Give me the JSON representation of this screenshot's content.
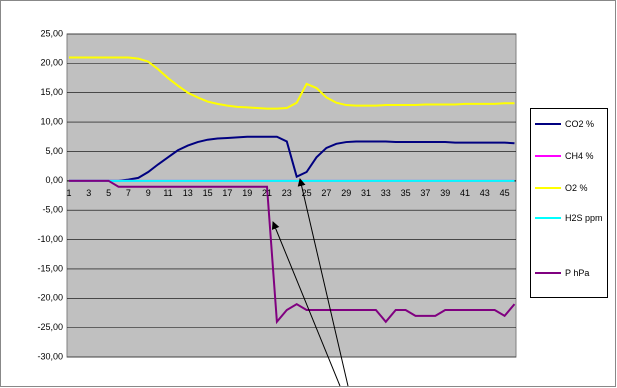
{
  "chart_data": {
    "type": "line",
    "categories": [
      "1",
      null,
      "3",
      null,
      "5",
      null,
      "7",
      null,
      "9",
      null,
      "11",
      null,
      "13",
      null,
      "15",
      null,
      "17",
      null,
      "19",
      null,
      "21",
      null,
      "23",
      null,
      "25",
      null,
      "27",
      null,
      "29",
      null,
      "31",
      null,
      "33",
      null,
      "35",
      null,
      "37",
      null,
      "39",
      null,
      "41",
      null,
      "43",
      null,
      "45",
      null
    ],
    "ylim": [
      -30,
      25
    ],
    "yticks": [
      {
        "value": 25,
        "label": "25,00"
      },
      {
        "value": 20,
        "label": "20,00"
      },
      {
        "value": 15,
        "label": "15,00"
      },
      {
        "value": 10,
        "label": "10,00"
      },
      {
        "value": 5,
        "label": "5,00"
      },
      {
        "value": 0,
        "label": "0,00"
      },
      {
        "value": -5,
        "label": "-5,00"
      },
      {
        "value": -10,
        "label": "-10,00"
      },
      {
        "value": -15,
        "label": "-15,00"
      },
      {
        "value": -20,
        "label": "-20,00"
      },
      {
        "value": -25,
        "label": "-25,00"
      },
      {
        "value": -30,
        "label": "-30,00"
      }
    ],
    "grid": true,
    "series": [
      {
        "name": "CO2 %",
        "color": "#000080",
        "values": [
          0,
          0,
          0,
          0,
          0,
          0,
          0.2,
          0.5,
          1.5,
          2.8,
          4,
          5.2,
          6,
          6.6,
          7,
          7.2,
          7.3,
          7.4,
          7.5,
          7.5,
          7.5,
          7.5,
          6.7,
          0.7,
          1.5,
          4,
          5.6,
          6.3,
          6.6,
          6.7,
          6.7,
          6.7,
          6.7,
          6.6,
          6.6,
          6.6,
          6.6,
          6.6,
          6.6,
          6.5,
          6.5,
          6.5,
          6.5,
          6.5,
          6.5,
          6.4
        ]
      },
      {
        "name": "CH4 %",
        "color": "#ff00ff",
        "values": [
          0,
          0,
          0,
          0,
          0,
          0,
          0,
          0,
          0,
          0,
          0,
          0,
          0,
          0,
          0,
          0,
          0,
          0,
          0,
          0,
          0,
          0,
          0,
          0,
          0,
          0,
          0,
          0,
          0,
          0,
          0,
          0,
          0,
          0,
          0,
          0,
          0,
          0,
          0,
          0,
          0,
          0,
          0,
          0,
          0,
          0
        ]
      },
      {
        "name": "O2 %",
        "color": "#ffff00",
        "values": [
          21,
          21,
          21,
          21,
          21,
          21,
          21,
          20.8,
          20.3,
          19,
          17.5,
          16.2,
          15,
          14.2,
          13.5,
          13.1,
          12.8,
          12.6,
          12.5,
          12.4,
          12.3,
          12.3,
          12.4,
          13.3,
          16.5,
          15.8,
          14.2,
          13.3,
          12.9,
          12.8,
          12.8,
          12.8,
          12.9,
          12.9,
          12.9,
          12.9,
          13,
          13,
          13,
          13,
          13.1,
          13.1,
          13.1,
          13.1,
          13.2,
          13.2
        ]
      },
      {
        "name": "H2S ppm",
        "color": "#00ffff",
        "values": [
          0,
          0,
          0,
          0,
          0,
          0,
          0,
          0,
          0,
          0,
          0,
          0,
          0,
          0,
          0,
          0,
          0,
          0,
          0,
          0,
          0,
          0,
          0,
          0,
          0,
          0,
          0,
          0,
          0,
          0,
          0,
          0,
          0,
          0,
          0,
          0,
          0,
          0,
          0,
          0,
          0,
          0,
          0,
          0,
          0,
          0
        ]
      },
      {
        "name": "P hPa",
        "color": "#800080",
        "values": [
          0,
          0,
          0,
          0,
          0,
          -1,
          -1,
          -1,
          -1,
          -1,
          -1,
          -1,
          -1,
          -1,
          -1,
          -1,
          -1,
          -1,
          -1,
          -1,
          -1,
          -24,
          -22,
          -21,
          -22,
          -22,
          -22,
          -22,
          -22,
          -22,
          -22,
          -22,
          -24,
          -22,
          -22,
          -23,
          -23,
          -23,
          -22,
          -22,
          -22,
          -22,
          -22,
          -22,
          -23,
          -21
        ]
      }
    ]
  }
}
